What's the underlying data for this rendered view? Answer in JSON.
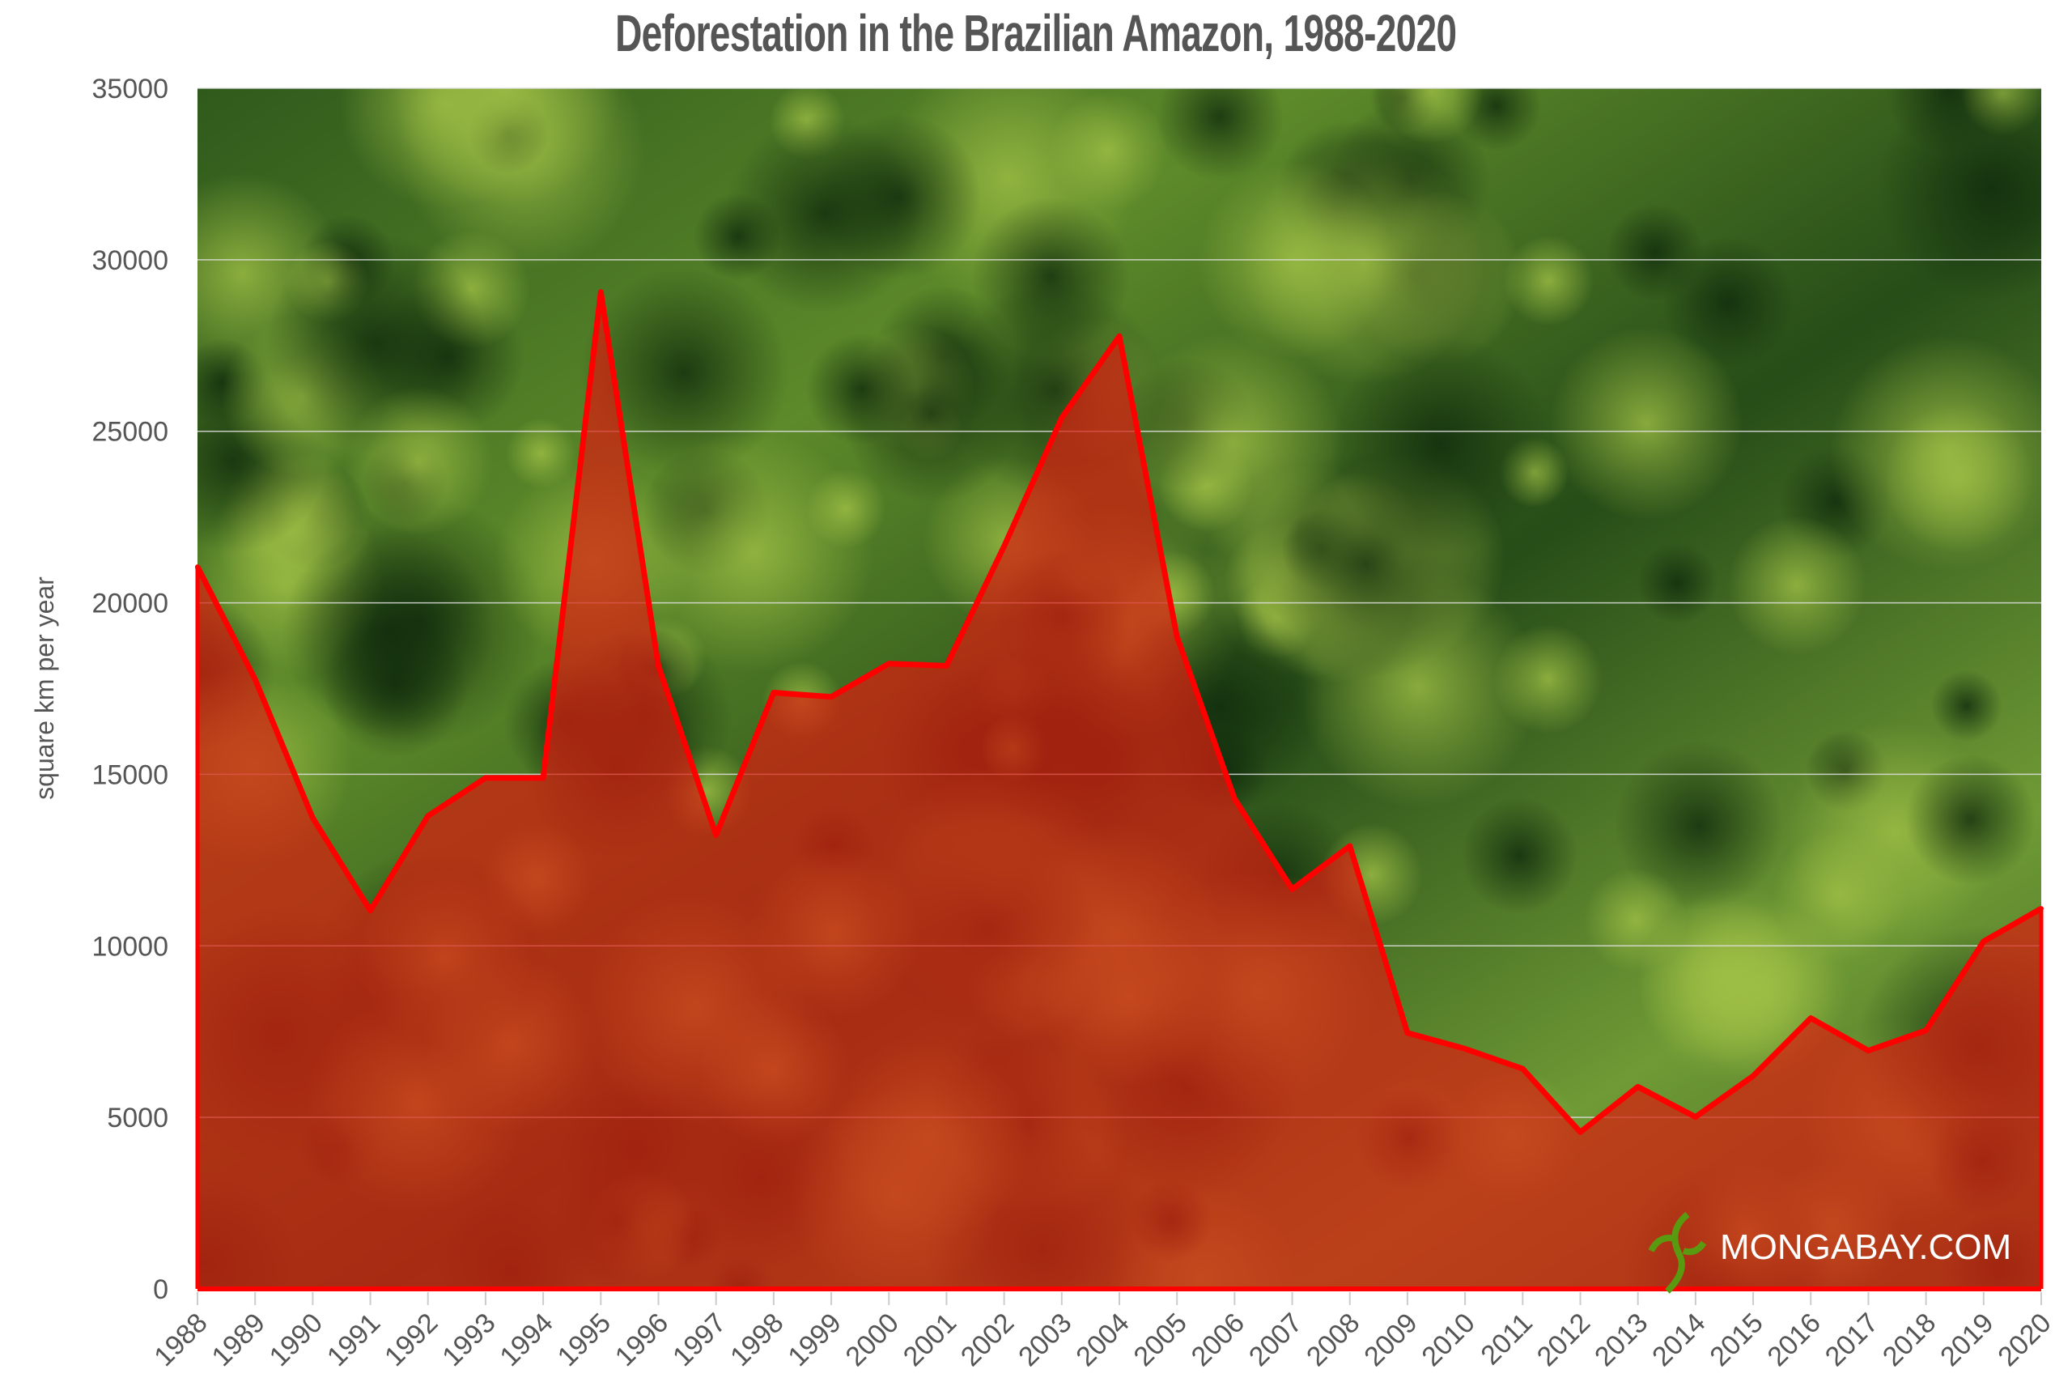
{
  "chart_data": {
    "type": "area",
    "title": "Deforestation in the Brazilian Amazon, 1988-2020",
    "xlabel": "",
    "ylabel": "square km per year",
    "ylim": [
      0,
      35000
    ],
    "yticks": [
      0,
      5000,
      10000,
      15000,
      20000,
      25000,
      30000,
      35000
    ],
    "grid": true,
    "categories": [
      "1988",
      "1989",
      "1990",
      "1991",
      "1992",
      "1993",
      "1994",
      "1995",
      "1996",
      "1997",
      "1998",
      "1999",
      "2000",
      "2001",
      "2002",
      "2003",
      "2004",
      "2005",
      "2006",
      "2007",
      "2008",
      "2009",
      "2010",
      "2011",
      "2012",
      "2013",
      "2014",
      "2015",
      "2016",
      "2017",
      "2018",
      "2019",
      "2020"
    ],
    "values": [
      21050,
      17770,
      13730,
      11030,
      13786,
      14896,
      14896,
      29059,
      18161,
      13227,
      17383,
      17259,
      18226,
      18165,
      21650,
      25396,
      27772,
      19014,
      14286,
      11651,
      12911,
      7464,
      7000,
      6418,
      4571,
      5891,
      5012,
      6207,
      7893,
      6947,
      7536,
      10129,
      11088
    ],
    "line_color": "#ff0000",
    "fill_color": "#d81e10"
  },
  "watermark": {
    "text": "MONGABAY.COM",
    "logo": "gecko-logo"
  }
}
